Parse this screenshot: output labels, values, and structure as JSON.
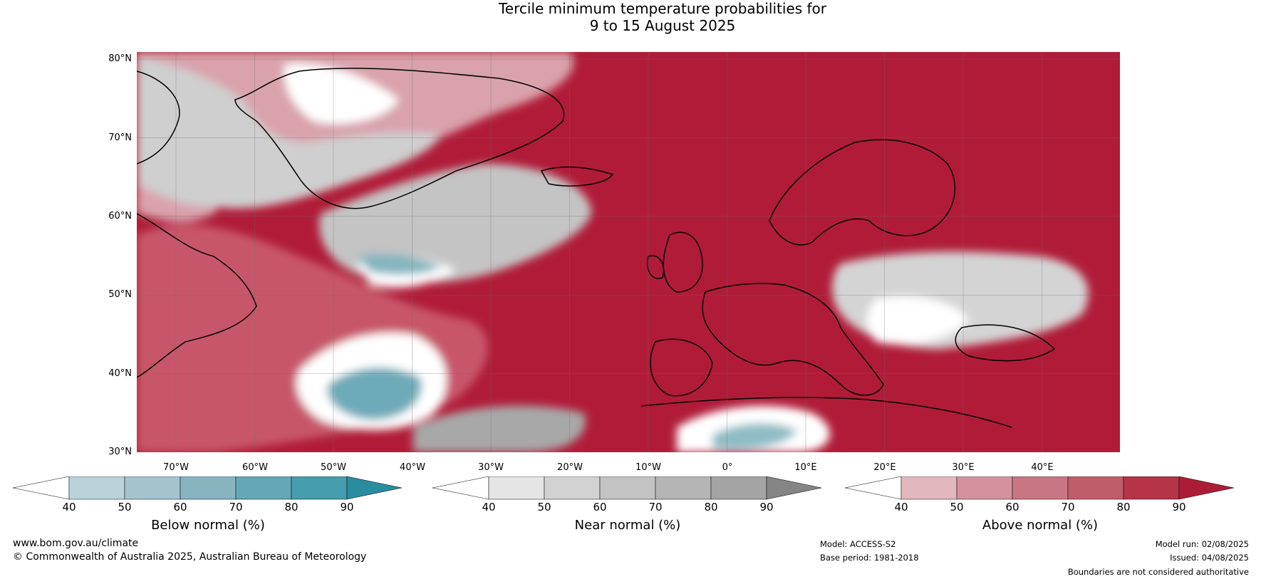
{
  "title": {
    "line1": "Tercile minimum temperature probabilities for",
    "line2": "9 to 15 August 2025"
  },
  "map": {
    "lat_labels": [
      "80°N",
      "70°N",
      "60°N",
      "50°N",
      "40°N",
      "30°N"
    ],
    "lon_labels": [
      "70°W",
      "60°W",
      "50°W",
      "40°W",
      "30°W",
      "20°W",
      "10°W",
      "0°",
      "10°E",
      "20°E",
      "30°E",
      "40°E"
    ],
    "region": "North Atlantic and Europe",
    "colors": {
      "above_normal": "#b31b39",
      "near_normal": "#c8c8c8",
      "below_normal": "#6eaab8",
      "coastline": "#000000",
      "borders": "#808080"
    }
  },
  "colorbars": [
    {
      "label": "Below normal (%)",
      "ticks": [
        "40",
        "50",
        "60",
        "70",
        "80",
        "90"
      ],
      "colors": [
        "#ffffff",
        "#bad3db",
        "#a3c4cc",
        "#86b5c0",
        "#64a8b7",
        "#469dae",
        "#2a8c9f"
      ]
    },
    {
      "label": "Near normal (%)",
      "ticks": [
        "40",
        "50",
        "60",
        "70",
        "80",
        "90"
      ],
      "colors": [
        "#ffffff",
        "#e5e5e5",
        "#d2d2d2",
        "#c3c3c3",
        "#b5b5b5",
        "#a4a4a4",
        "#858585"
      ]
    },
    {
      "label": "Above normal (%)",
      "ticks": [
        "40",
        "50",
        "60",
        "70",
        "80",
        "90"
      ],
      "colors": [
        "#ffffff",
        "#e2b7be",
        "#d4929e",
        "#c97684",
        "#bf5d6c",
        "#b53447",
        "#ad1c36"
      ]
    }
  ],
  "footer": {
    "website": "www.bom.gov.au/climate",
    "copyright": "© Commonwealth of Australia 2025, Australian Bureau of Meteorology",
    "model": "Model: ACCESS-S2",
    "base_period": "Base period: 1981-2018",
    "model_run": "Model run: 02/08/2025",
    "issued": "Issued: 04/08/2025",
    "disclaimer": "Boundaries are not considered authoritative"
  }
}
